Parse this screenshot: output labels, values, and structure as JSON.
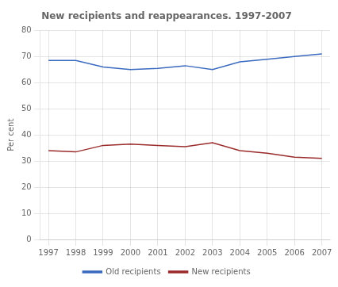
{
  "chart_data": {
    "type": "line",
    "title": "New recipients and reappearances. 1997-2007",
    "ylabel": "Per cent",
    "x": [
      1997,
      1998,
      1999,
      2000,
      2001,
      2002,
      2003,
      2004,
      2005,
      2006,
      2007
    ],
    "series": [
      {
        "name": "Old recipients",
        "color": "#3a6abf",
        "values": [
          68.5,
          68.5,
          66.0,
          65.0,
          65.5,
          66.5,
          65.0,
          68.0,
          69.0,
          70.0,
          71.0
        ]
      },
      {
        "name": "New recipients",
        "color": "#9b2b2b",
        "values": [
          34.0,
          33.5,
          36.0,
          36.5,
          36.0,
          35.5,
          37.0,
          34.0,
          33.0,
          31.5,
          31.0
        ]
      }
    ],
    "xlim": [
      1996.7,
      2007.3
    ],
    "xticks": [
      1997,
      1998,
      1999,
      2000,
      2001,
      2002,
      2003,
      2004,
      2005,
      2006,
      2007
    ],
    "ylim": [
      0,
      80
    ],
    "yticks": [
      0,
      10,
      20,
      30,
      40,
      50,
      60,
      70,
      80
    ],
    "grid": true,
    "legend": "bottom"
  }
}
